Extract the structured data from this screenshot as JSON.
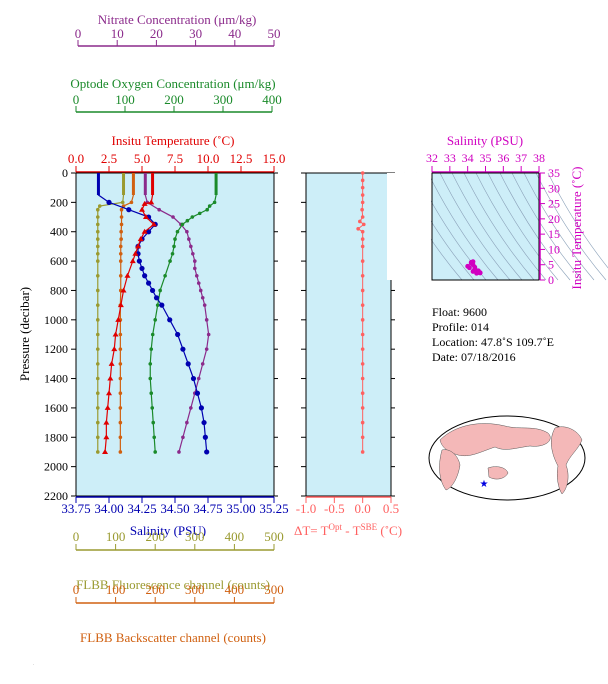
{
  "colors": {
    "nitrate": "#8b2a8b",
    "oxygen": "#1a8a2a",
    "temperature": "#e00000",
    "salinity": "#0000b0",
    "pressure": "#000000",
    "delta": "#ff6060",
    "fluorescence": "#9a9a30",
    "backscatter": "#d06010",
    "inset_salinity": "#d000c0",
    "plot_bg": "#cdeef8",
    "land": "#f4b8b8"
  },
  "axes": {
    "nitrate": {
      "label": "Nitrate Concentration (μm/kg)",
      "min": 0,
      "max": 50,
      "ticks": [
        "0",
        "10",
        "20",
        "30",
        "40",
        "50"
      ]
    },
    "oxygen": {
      "label": "Optode Oxygen Concentration (μm/kg)",
      "min": 0,
      "max": 400,
      "ticks": [
        "0",
        "100",
        "200",
        "300",
        "400"
      ]
    },
    "temperature": {
      "label": "Insitu Temperature (˚C)",
      "min": 0,
      "max": 15,
      "ticks": [
        "0.0",
        "2.5",
        "5.0",
        "7.5",
        "10.0",
        "12.5",
        "15.0"
      ]
    },
    "pressure": {
      "label": "Pressure (decibar)",
      "min": 0,
      "max": 2200,
      "ticks": [
        "0",
        "200",
        "400",
        "600",
        "800",
        "1000",
        "1200",
        "1400",
        "1600",
        "1800",
        "2000",
        "2200"
      ]
    },
    "salinity": {
      "label": "Salinity (PSU)",
      "min": 33.75,
      "max": 35.25,
      "ticks": [
        "33.75",
        "34.00",
        "34.25",
        "34.50",
        "34.75",
        "35.00",
        "35.25"
      ]
    },
    "delta": {
      "label": "ΔT= T",
      "sup1": "Opt",
      "mid": " - T",
      "sup2": "SBE",
      "end": " (˚C)",
      "min": -1.0,
      "max": 0.5,
      "ticks": [
        "-1.0",
        "-0.5",
        "0.0",
        "0.5"
      ]
    },
    "fluorescence": {
      "label": "FLBB Fluorescence channel (counts)",
      "min": 0,
      "max": 500,
      "ticks": [
        "0",
        "100",
        "200",
        "300",
        "400",
        "500"
      ]
    },
    "backscatter": {
      "label": "FLBB Backscatter channel (counts)",
      "min": 0,
      "max": 500,
      "ticks": [
        "0",
        "100",
        "200",
        "300",
        "400",
        "500"
      ]
    },
    "inset_salinity": {
      "label": "Salinity (PSU)",
      "min": 32,
      "max": 38,
      "ticks": [
        "32",
        "33",
        "34",
        "35",
        "36",
        "37",
        "38"
      ]
    },
    "inset_temperature": {
      "label": "Insitu Temperature (˚C)",
      "min": 0,
      "max": 35,
      "ticks": [
        "0",
        "5",
        "10",
        "15",
        "20",
        "25",
        "30",
        "35"
      ]
    }
  },
  "info": {
    "float": "Float:  9600",
    "profile": "Profile:  014",
    "location": "Location:  47.8˚S  109.7˚E",
    "date": "Date:  07/18/2016"
  },
  "chart_data": {
    "type": "line",
    "x_unit_note": "",
    "series": [
      {
        "key": "temperature",
        "pressure": [
          0,
          50,
          100,
          150,
          200,
          210,
          250,
          300,
          350,
          400,
          450,
          500,
          550,
          600,
          700,
          800,
          900,
          1000,
          1100,
          1200,
          1300,
          1400,
          1500,
          1600,
          1700,
          1800,
          1900
        ],
        "values": [
          5.8,
          5.8,
          5.8,
          5.8,
          5.7,
          5.2,
          5.0,
          5.3,
          5.9,
          5.2,
          4.9,
          4.7,
          4.5,
          4.3,
          3.9,
          3.6,
          3.4,
          3.2,
          3.0,
          2.9,
          2.7,
          2.6,
          2.5,
          2.4,
          2.3,
          2.3,
          2.2
        ]
      },
      {
        "key": "salinity",
        "pressure": [
          0,
          50,
          100,
          150,
          200,
          250,
          300,
          350,
          400,
          450,
          500,
          550,
          600,
          650,
          700,
          750,
          800,
          850,
          900,
          1000,
          1100,
          1200,
          1300,
          1400,
          1500,
          1600,
          1700,
          1800,
          1900
        ],
        "values": [
          33.92,
          33.92,
          33.92,
          33.92,
          34.0,
          34.15,
          34.3,
          34.35,
          34.3,
          34.25,
          34.22,
          34.22,
          34.23,
          34.25,
          34.27,
          34.3,
          34.33,
          34.36,
          34.4,
          34.46,
          34.52,
          34.56,
          34.6,
          34.64,
          34.67,
          34.7,
          34.72,
          34.73,
          34.74
        ]
      },
      {
        "key": "oxygen",
        "pressure": [
          0,
          50,
          100,
          150,
          200,
          225,
          250,
          275,
          300,
          325,
          350,
          400,
          450,
          500,
          550,
          600,
          700,
          800,
          900,
          1000,
          1100,
          1200,
          1300,
          1400,
          1500,
          1600,
          1700,
          1800,
          1900
        ],
        "values": [
          283,
          283,
          283,
          283,
          280,
          270,
          265,
          250,
          235,
          225,
          215,
          205,
          200,
          198,
          195,
          190,
          180,
          170,
          165,
          160,
          155,
          152,
          150,
          150,
          152,
          154,
          156,
          158,
          160
        ]
      },
      {
        "key": "nitrate",
        "pressure": [
          0,
          50,
          100,
          150,
          200,
          250,
          300,
          350,
          400,
          450,
          500,
          550,
          600,
          650,
          700,
          750,
          800,
          850,
          900,
          1000,
          1100,
          1200,
          1300,
          1400,
          1500,
          1600,
          1700,
          1800,
          1900
        ],
        "values": [
          17.5,
          17.5,
          17.5,
          17.5,
          18.0,
          21.0,
          24.5,
          26.5,
          28.0,
          28.5,
          29.0,
          29.5,
          30.0,
          30.0,
          30.5,
          31.0,
          31.5,
          32.0,
          32.5,
          33.0,
          33.5,
          33.0,
          32.0,
          31.0,
          30.0,
          29.0,
          28.0,
          27.0,
          26.0
        ]
      },
      {
        "key": "fluorescence",
        "pressure": [
          0,
          50,
          100,
          150,
          200,
          225,
          250,
          300,
          350,
          400,
          450,
          500,
          550,
          600,
          700,
          800,
          900,
          1000,
          1100,
          1200,
          1300,
          1400,
          1500,
          1600,
          1700,
          1800,
          1900
        ],
        "values": [
          120,
          120,
          120,
          120,
          118,
          60,
          55,
          55,
          55,
          55,
          55,
          55,
          55,
          55,
          55,
          55,
          55,
          55,
          55,
          55,
          55,
          55,
          55,
          55,
          55,
          55,
          55
        ]
      },
      {
        "key": "backscatter",
        "pressure": [
          0,
          50,
          100,
          150,
          200,
          225,
          250,
          300,
          350,
          400,
          450,
          500,
          550,
          600,
          700,
          800,
          900,
          1000,
          1100,
          1200,
          1300,
          1400,
          1500,
          1600,
          1700,
          1800,
          1900
        ],
        "values": [
          145,
          145,
          145,
          145,
          140,
          120,
          115,
          115,
          115,
          114,
          114,
          113,
          113,
          113,
          113,
          113,
          112,
          112,
          112,
          112,
          112,
          112,
          112,
          112,
          112,
          112,
          112
        ]
      },
      {
        "key": "delta",
        "pressure": [
          0,
          50,
          100,
          150,
          200,
          250,
          300,
          330,
          350,
          380,
          400,
          450,
          500,
          600,
          700,
          800,
          900,
          1000,
          1100,
          1200,
          1300,
          1400,
          1500,
          1600,
          1700,
          1800,
          1900
        ],
        "values": [
          0,
          0,
          0,
          0,
          0,
          -0.01,
          0,
          -0.05,
          0.02,
          -0.08,
          0,
          0,
          0,
          0,
          0,
          0,
          0,
          0,
          0,
          0,
          0,
          0,
          0,
          0,
          0,
          0,
          0
        ]
      }
    ],
    "inset": {
      "type": "scatter",
      "salinity": [
        34.2,
        34.3,
        34.0,
        34.1,
        34.4,
        34.5,
        34.3,
        34.6,
        34.7,
        34.5,
        34.4,
        34.2,
        34.3,
        34.4,
        34.6,
        34.7
      ],
      "temperature": [
        5.8,
        5.0,
        4.5,
        4.0,
        3.5,
        3.0,
        2.8,
        2.5,
        2.3,
        2.2,
        3.8,
        5.5,
        6.0,
        4.2,
        3.0,
        2.4
      ]
    }
  }
}
